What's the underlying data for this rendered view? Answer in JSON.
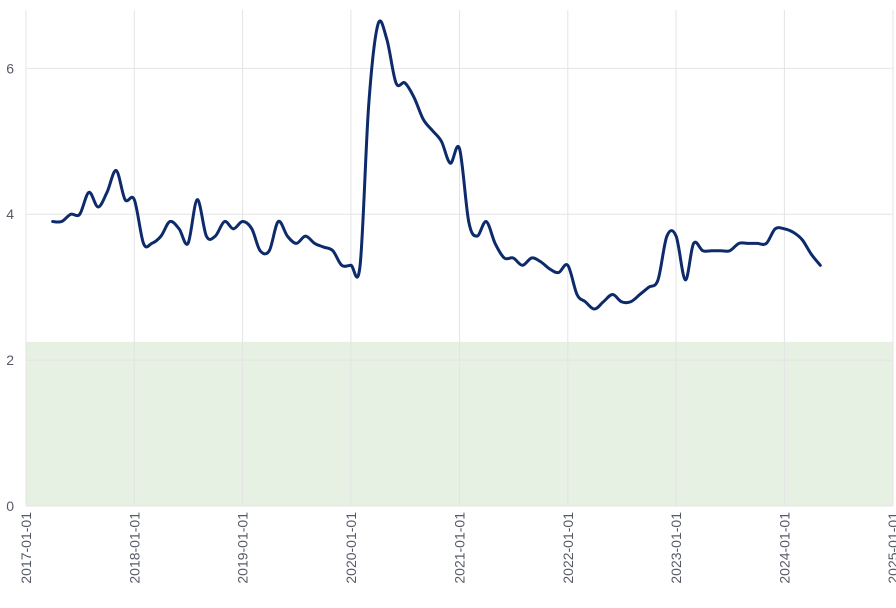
{
  "chart_data": {
    "type": "line",
    "title": "",
    "xlabel": "",
    "ylabel": "",
    "xlim": [
      "2017-01-01",
      "2025-01-01"
    ],
    "ylim": [
      0,
      6.8
    ],
    "grid": true,
    "x_ticks": [
      "2017-01-01",
      "2018-01-01",
      "2019-01-01",
      "2020-01-01",
      "2021-01-01",
      "2022-01-01",
      "2023-01-01",
      "2024-01-01",
      "2025-01-01"
    ],
    "y_ticks": [
      0,
      2,
      4,
      6
    ],
    "band": {
      "y0": 0,
      "y1": 2.25,
      "color": "#e6f0e3"
    },
    "line_color": "#0d2a6b",
    "series": [
      {
        "x": [
          "2017-04-01",
          "2017-05-01",
          "2017-06-01",
          "2017-07-01",
          "2017-08-01",
          "2017-09-01",
          "2017-10-01",
          "2017-11-01",
          "2017-12-01",
          "2018-01-01",
          "2018-02-01",
          "2018-03-01",
          "2018-04-01",
          "2018-05-01",
          "2018-06-01",
          "2018-07-01",
          "2018-08-01",
          "2018-09-01",
          "2018-10-01",
          "2018-11-01",
          "2018-12-01",
          "2019-01-01",
          "2019-02-01",
          "2019-03-01",
          "2019-04-01",
          "2019-05-01",
          "2019-06-01",
          "2019-07-01",
          "2019-08-01",
          "2019-09-01",
          "2019-10-01",
          "2019-11-01",
          "2019-12-01",
          "2020-01-01",
          "2020-02-01",
          "2020-03-01",
          "2020-04-01",
          "2020-05-01",
          "2020-06-01",
          "2020-07-01",
          "2020-08-01",
          "2020-09-01",
          "2020-10-01",
          "2020-11-01",
          "2020-12-01",
          "2021-01-01",
          "2021-02-01",
          "2021-03-01",
          "2021-04-01",
          "2021-05-01",
          "2021-06-01",
          "2021-07-01",
          "2021-08-01",
          "2021-09-01",
          "2021-10-01",
          "2021-11-01",
          "2021-12-01",
          "2022-01-01",
          "2022-02-01",
          "2022-03-01",
          "2022-04-01",
          "2022-05-01",
          "2022-06-01",
          "2022-07-01",
          "2022-08-01",
          "2022-09-01",
          "2022-10-01",
          "2022-11-01",
          "2022-12-01",
          "2023-01-01",
          "2023-02-01",
          "2023-03-01",
          "2023-04-01",
          "2023-05-01",
          "2023-06-01",
          "2023-07-01",
          "2023-08-01",
          "2023-09-01",
          "2023-10-01",
          "2023-11-01",
          "2023-12-01",
          "2024-01-01",
          "2024-02-01",
          "2024-03-01",
          "2024-04-01",
          "2024-05-01"
        ],
        "values": [
          3.9,
          3.9,
          4.0,
          4.0,
          4.3,
          4.1,
          4.3,
          4.6,
          4.2,
          4.2,
          3.6,
          3.6,
          3.7,
          3.9,
          3.8,
          3.6,
          4.2,
          3.7,
          3.7,
          3.9,
          3.8,
          3.9,
          3.8,
          3.5,
          3.5,
          3.9,
          3.7,
          3.6,
          3.7,
          3.6,
          3.55,
          3.5,
          3.3,
          3.3,
          3.3,
          5.5,
          6.6,
          6.4,
          5.8,
          5.8,
          5.6,
          5.3,
          5.15,
          5.0,
          4.7,
          4.9,
          3.9,
          3.7,
          3.9,
          3.6,
          3.4,
          3.4,
          3.3,
          3.4,
          3.35,
          3.25,
          3.2,
          3.3,
          2.9,
          2.8,
          2.7,
          2.8,
          2.9,
          2.8,
          2.8,
          2.9,
          3.0,
          3.1,
          3.7,
          3.7,
          3.1,
          3.6,
          3.5,
          3.5,
          3.5,
          3.5,
          3.6,
          3.6,
          3.6,
          3.6,
          3.8,
          3.8,
          3.75,
          3.65,
          3.45,
          3.3
        ]
      }
    ]
  }
}
